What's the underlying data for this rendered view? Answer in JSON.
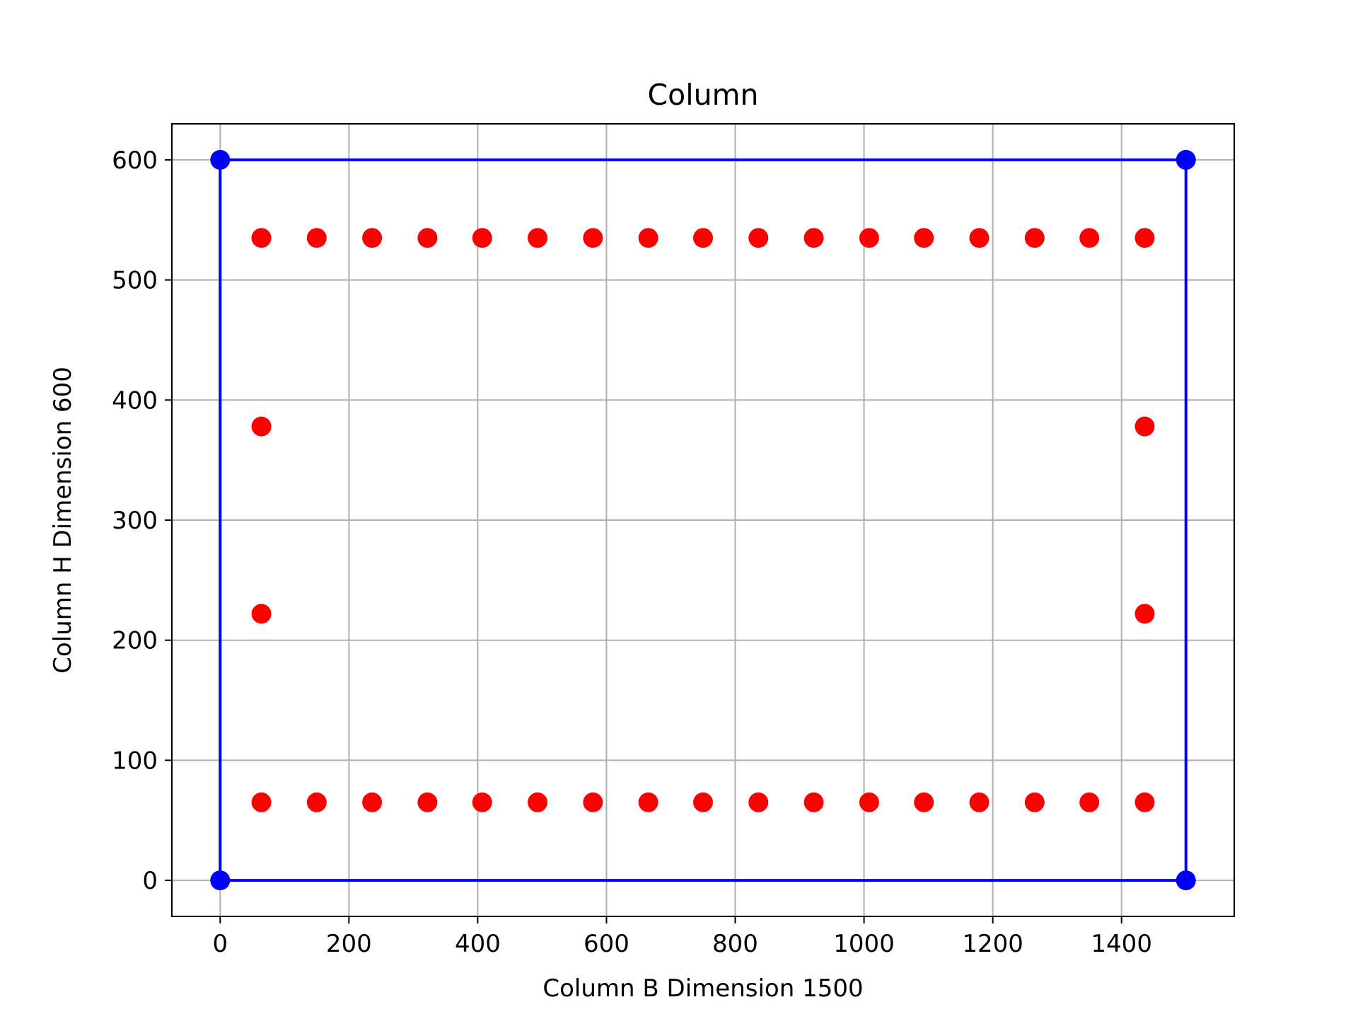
{
  "chart_data": {
    "type": "scatter",
    "title": "Column",
    "xlabel": "Column B Dimension 1500",
    "ylabel": "Column H Dimension 600",
    "xlim": [
      -75,
      1575
    ],
    "ylim": [
      -30,
      630
    ],
    "xticks": [
      0,
      200,
      400,
      600,
      800,
      1000,
      1200,
      1400
    ],
    "yticks": [
      0,
      100,
      200,
      300,
      400,
      500,
      600
    ],
    "grid": true,
    "series": [
      {
        "kind": "line-with-markers",
        "color": "#0000ff",
        "points": [
          [
            0,
            0
          ],
          [
            1500,
            0
          ],
          [
            1500,
            600
          ],
          [
            0,
            600
          ],
          [
            0,
            0
          ]
        ]
      },
      {
        "kind": "markers",
        "color": "#ff0000",
        "points": [
          [
            64,
            65
          ],
          [
            150,
            65
          ],
          [
            236,
            65
          ],
          [
            322,
            65
          ],
          [
            407,
            65
          ],
          [
            493,
            65
          ],
          [
            579,
            65
          ],
          [
            665,
            65
          ],
          [
            750,
            65
          ],
          [
            836,
            65
          ],
          [
            922,
            65
          ],
          [
            1008,
            65
          ],
          [
            1093,
            65
          ],
          [
            1179,
            65
          ],
          [
            1265,
            65
          ],
          [
            1350,
            65
          ],
          [
            1436,
            65
          ],
          [
            64,
            535
          ],
          [
            150,
            535
          ],
          [
            236,
            535
          ],
          [
            322,
            535
          ],
          [
            407,
            535
          ],
          [
            493,
            535
          ],
          [
            579,
            535
          ],
          [
            665,
            535
          ],
          [
            750,
            535
          ],
          [
            836,
            535
          ],
          [
            922,
            535
          ],
          [
            1008,
            535
          ],
          [
            1093,
            535
          ],
          [
            1179,
            535
          ],
          [
            1265,
            535
          ],
          [
            1350,
            535
          ],
          [
            1436,
            535
          ],
          [
            64,
            222
          ],
          [
            64,
            378
          ],
          [
            1436,
            222
          ],
          [
            1436,
            378
          ]
        ]
      }
    ]
  }
}
